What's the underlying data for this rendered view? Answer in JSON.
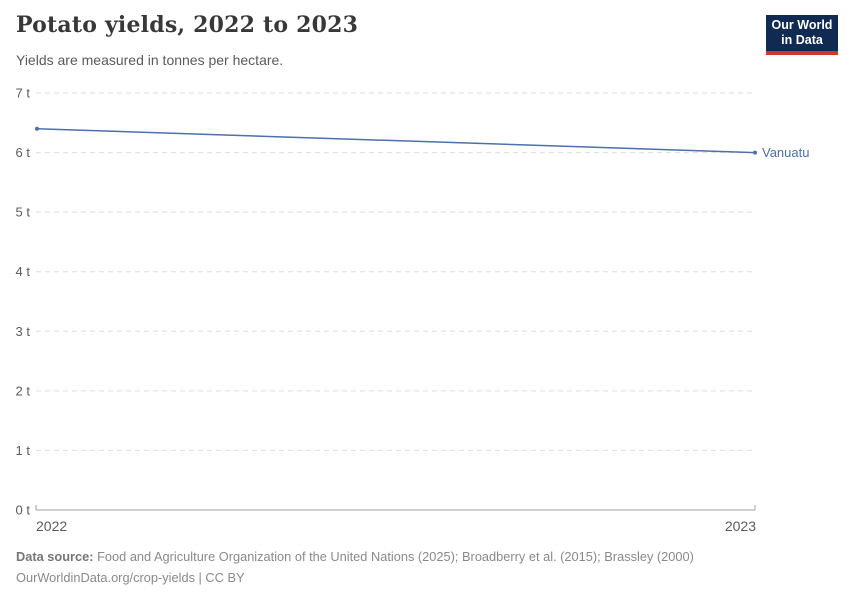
{
  "header": {
    "title": "Potato yields, 2022 to 2023",
    "subtitle": "Yields are measured in tonnes per hectare.",
    "logo": {
      "line1": "Our World",
      "line2": "in Data"
    }
  },
  "chart_data": {
    "type": "line",
    "title": "Potato yields, 2022 to 2023",
    "ylabel": "tonnes per hectare",
    "x": [
      "2022",
      "2023"
    ],
    "series": [
      {
        "name": "Vanuatu",
        "values": [
          6.4,
          6.0
        ],
        "color": "#4c6fad"
      }
    ],
    "ylim": [
      0,
      7
    ],
    "yticks": [
      {
        "value": 0,
        "label": "0 t"
      },
      {
        "value": 1,
        "label": "1 t"
      },
      {
        "value": 2,
        "label": "2 t"
      },
      {
        "value": 3,
        "label": "3 t"
      },
      {
        "value": 4,
        "label": "4 t"
      },
      {
        "value": 5,
        "label": "5 t"
      },
      {
        "value": 6,
        "label": "6 t"
      },
      {
        "value": 7,
        "label": "7 t"
      }
    ],
    "grid": "horizontal-dashed",
    "legend_position": "end-of-line-label",
    "marker": "endpoint-dots"
  },
  "footer": {
    "source_label": "Data source:",
    "source_text": "Food and Agriculture Organization of the United Nations (2025); Broadberry et al. (2015); Brassley (2000)",
    "license": "OurWorldinData.org/crop-yields | CC BY"
  },
  "colors": {
    "title": "#383838",
    "subtitle": "#5b5b5b",
    "tick_label": "#5b5b5b",
    "gridline": "#dedede",
    "axis": "#a1a1a1",
    "series_blue": "#4c6fad",
    "logo_bg": "#102a52",
    "logo_accent": "#d0362a",
    "footer_text": "#8a8a8a"
  }
}
